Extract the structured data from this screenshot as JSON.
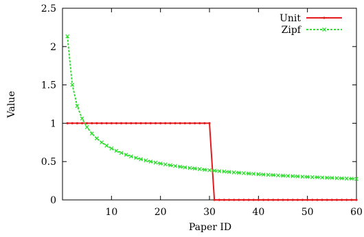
{
  "chart_data": {
    "type": "line",
    "xlabel": "Paper ID",
    "ylabel": "Value",
    "xlim": [
      0,
      60
    ],
    "ylim": [
      0,
      2.5
    ],
    "x_ticks": [
      10,
      20,
      30,
      40,
      50,
      60
    ],
    "x_tick_labels": [
      "10",
      "20",
      "30",
      "40",
      "50",
      "60"
    ],
    "y_ticks": [
      0,
      0.5,
      1,
      1.5,
      2,
      2.5
    ],
    "y_tick_labels": [
      "0",
      "0.5",
      "1",
      "1.5",
      "2",
      "2.5"
    ],
    "grid": false,
    "legend_position": "top-right",
    "series": [
      {
        "name": "Unit",
        "color": "#e41a1c",
        "style": "solid",
        "marker": "dot",
        "x": [
          1,
          2,
          3,
          4,
          5,
          6,
          7,
          8,
          9,
          10,
          11,
          12,
          13,
          14,
          15,
          16,
          17,
          18,
          19,
          20,
          21,
          22,
          23,
          24,
          25,
          26,
          27,
          28,
          29,
          30,
          31,
          32,
          33,
          34,
          35,
          36,
          37,
          38,
          39,
          40,
          41,
          42,
          43,
          44,
          45,
          46,
          47,
          48,
          49,
          50,
          51,
          52,
          53,
          54,
          55,
          56,
          57,
          58,
          59,
          60
        ],
        "values": [
          1,
          1,
          1,
          1,
          1,
          1,
          1,
          1,
          1,
          1,
          1,
          1,
          1,
          1,
          1,
          1,
          1,
          1,
          1,
          1,
          1,
          1,
          1,
          1,
          1,
          1,
          1,
          1,
          1,
          1,
          0,
          0,
          0,
          0,
          0,
          0,
          0,
          0,
          0,
          0,
          0,
          0,
          0,
          0,
          0,
          0,
          0,
          0,
          0,
          0,
          0,
          0,
          0,
          0,
          0,
          0,
          0,
          0,
          0,
          0
        ]
      },
      {
        "name": "Zipf",
        "color": "#33dd33",
        "style": "dashed",
        "marker": "cross",
        "x": [
          1,
          2,
          3,
          4,
          5,
          6,
          7,
          8,
          9,
          10,
          11,
          12,
          13,
          14,
          15,
          16,
          17,
          18,
          19,
          20,
          21,
          22,
          23,
          24,
          25,
          26,
          27,
          28,
          29,
          30,
          31,
          32,
          33,
          34,
          35,
          36,
          37,
          38,
          39,
          40,
          41,
          42,
          43,
          44,
          45,
          46,
          47,
          48,
          49,
          50,
          51,
          52,
          53,
          54,
          55,
          56,
          57,
          58,
          59,
          60
        ],
        "values": [
          2.134,
          1.501,
          1.225,
          1.061,
          0.949,
          0.866,
          0.802,
          0.75,
          0.708,
          0.671,
          0.64,
          0.613,
          0.589,
          0.567,
          0.548,
          0.531,
          0.515,
          0.5,
          0.487,
          0.474,
          0.463,
          0.452,
          0.442,
          0.433,
          0.424,
          0.416,
          0.409,
          0.402,
          0.394,
          0.388,
          0.381,
          0.375,
          0.37,
          0.364,
          0.359,
          0.354,
          0.349,
          0.344,
          0.34,
          0.335,
          0.331,
          0.327,
          0.324,
          0.32,
          0.316,
          0.313,
          0.31,
          0.307,
          0.303,
          0.3,
          0.297,
          0.295,
          0.292,
          0.289,
          0.287,
          0.284,
          0.282,
          0.279,
          0.277,
          0.274
        ]
      }
    ]
  }
}
